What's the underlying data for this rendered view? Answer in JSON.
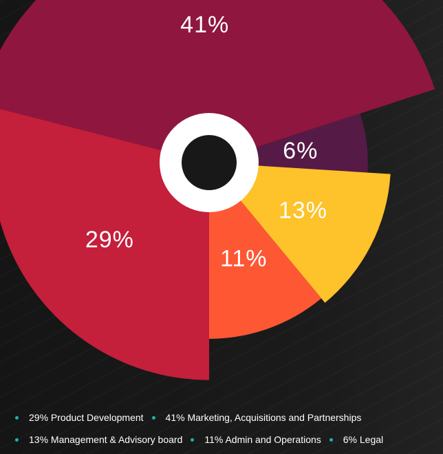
{
  "chart_data": {
    "type": "pie",
    "variant": "polar-area",
    "slices": [
      {
        "label": "29%",
        "value": 29,
        "category": "Product Development",
        "color": "#c41f3b"
      },
      {
        "label": "41%",
        "value": 41,
        "category": "Marketing, Acquisitions and Partnerships",
        "color": "#8f163f"
      },
      {
        "label": "6%",
        "value": 6,
        "category": "Legal",
        "color": "#561a47"
      },
      {
        "label": "13%",
        "value": 13,
        "category": "Management & Advisory board",
        "color": "#fec22a"
      },
      {
        "label": "11%",
        "value": 11,
        "category": "Admin and Operations",
        "color": "#fd5734"
      }
    ],
    "center_hole_color": "#ffffff"
  },
  "legend": {
    "dot_color": "#1fb2a8",
    "rows": [
      [
        "29% Product Development",
        "41% Marketing, Acquisitions and Partnerships"
      ],
      [
        "13% Management & Advisory board",
        "11% Admin and Operations",
        "6% Legal"
      ]
    ]
  }
}
